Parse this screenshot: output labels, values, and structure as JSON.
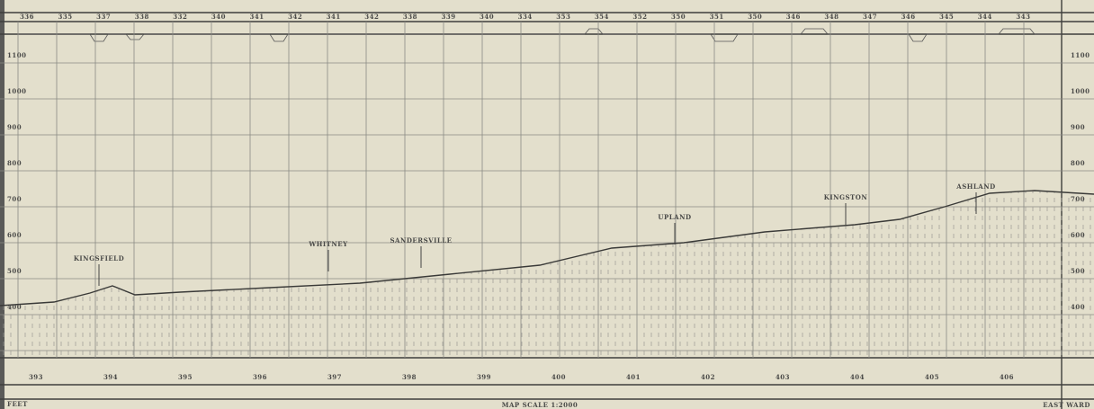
{
  "header": {
    "mileposts": [
      "336",
      "335",
      "337",
      "338",
      "332",
      "340",
      "341",
      "342",
      "341",
      "342",
      "338",
      "339",
      "340",
      "334",
      "353",
      "354",
      "352",
      "350",
      "351",
      "350",
      "346",
      "348",
      "347",
      "346",
      "345",
      "344",
      "343"
    ]
  },
  "elevations": [
    "1100",
    "1000",
    "900",
    "800",
    "700",
    "600",
    "500",
    "400"
  ],
  "stations": [
    "KINGSFIELD",
    "WHITNEY",
    "SANDERSVILLE",
    "UPLAND",
    "KINGSTON",
    "ASHLAND"
  ],
  "footer": {
    "miles": [
      "393",
      "394",
      "395",
      "396",
      "397",
      "398",
      "399",
      "400",
      "401",
      "402",
      "403",
      "404",
      "405",
      "406"
    ],
    "units": "FEET",
    "scale": "MAP SCALE 1:2000",
    "right": "EAST WARD"
  }
}
